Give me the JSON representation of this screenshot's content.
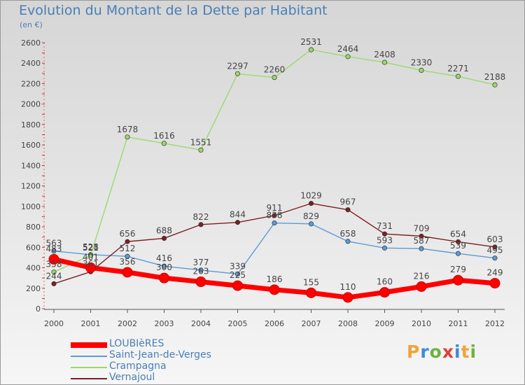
{
  "title": "Evolution du Montant de la Dette par Habitant",
  "subtitle": "(en €)",
  "logo": {
    "text": "Proxiti",
    "letter_colors": [
      "#f2a33a",
      "#3f8bd8",
      "#6cb43f",
      "#e23f36",
      "#3f8bd8",
      "#f2a33a",
      "#6cb43f"
    ]
  },
  "chart_data": {
    "type": "line",
    "x": [
      "2000",
      "2001",
      "2002",
      "2003",
      "2004",
      "2005",
      "2006",
      "2007",
      "2008",
      "2009",
      "2010",
      "2011",
      "2012"
    ],
    "ylim": [
      0,
      2600
    ],
    "yticks": [
      0,
      200,
      400,
      600,
      800,
      1000,
      1200,
      1400,
      1600,
      1800,
      2000,
      2200,
      2400,
      2600
    ],
    "grid": false,
    "legend_position": "bottom-left",
    "series": [
      {
        "name": "LOUBIèRES",
        "color": "#ff0000",
        "emphasis": true,
        "values": [
          483,
          401,
          356,
          300,
          263,
          225,
          186,
          155,
          110,
          160,
          216,
          279,
          249
        ],
        "labels": [
          "483",
          "401",
          "356",
          "300",
          "263",
          "225",
          "186",
          "155",
          "110",
          "160",
          "216",
          "279",
          "249"
        ]
      },
      {
        "name": "Saint-Jean-de-Verges",
        "color": "#5b9bd5",
        "values": [
          563,
          528,
          512,
          416,
          377,
          339,
          838,
          829,
          658,
          593,
          587,
          539,
          495
        ],
        "labels": [
          "563",
          "528",
          "512",
          "416",
          "377",
          "339",
          "838",
          "829",
          "658",
          "593",
          "587",
          "539",
          "495"
        ]
      },
      {
        "name": "Crampagna",
        "color": "#9dd96a",
        "values": [
          358,
          521,
          1678,
          1616,
          1551,
          2297,
          2260,
          2531,
          2464,
          2408,
          2330,
          2271,
          2188
        ],
        "labels": [
          "358",
          "521",
          "1678",
          "1616",
          "1551",
          "2297",
          "2260",
          "2531",
          "2464",
          "2408",
          "2330",
          "2271",
          "2188"
        ]
      },
      {
        "name": "Vernajoul",
        "color": "#7b1f24",
        "values": [
          244,
          361,
          656,
          688,
          822,
          844,
          911,
          1029,
          967,
          731,
          709,
          654,
          603
        ],
        "labels": [
          "244",
          "361",
          "656",
          "688",
          "822",
          "844",
          "911",
          "1029",
          "967",
          "731",
          "709",
          "654",
          "603"
        ]
      }
    ]
  }
}
